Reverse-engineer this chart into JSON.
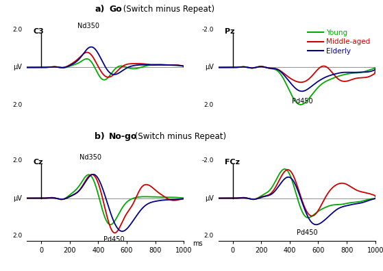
{
  "colors": {
    "young": "#00AA00",
    "middle": "#CC0000",
    "elderly": "#00008B"
  },
  "legend_labels": [
    "Young",
    "Middle-aged",
    "Elderly"
  ],
  "ylabel": "μV",
  "xlabel": "ms",
  "xlim": [
    -100,
    1000
  ],
  "xticks": [
    0,
    200,
    400,
    600,
    800,
    1000
  ],
  "background": "#ffffff",
  "linewidth": 1.3
}
